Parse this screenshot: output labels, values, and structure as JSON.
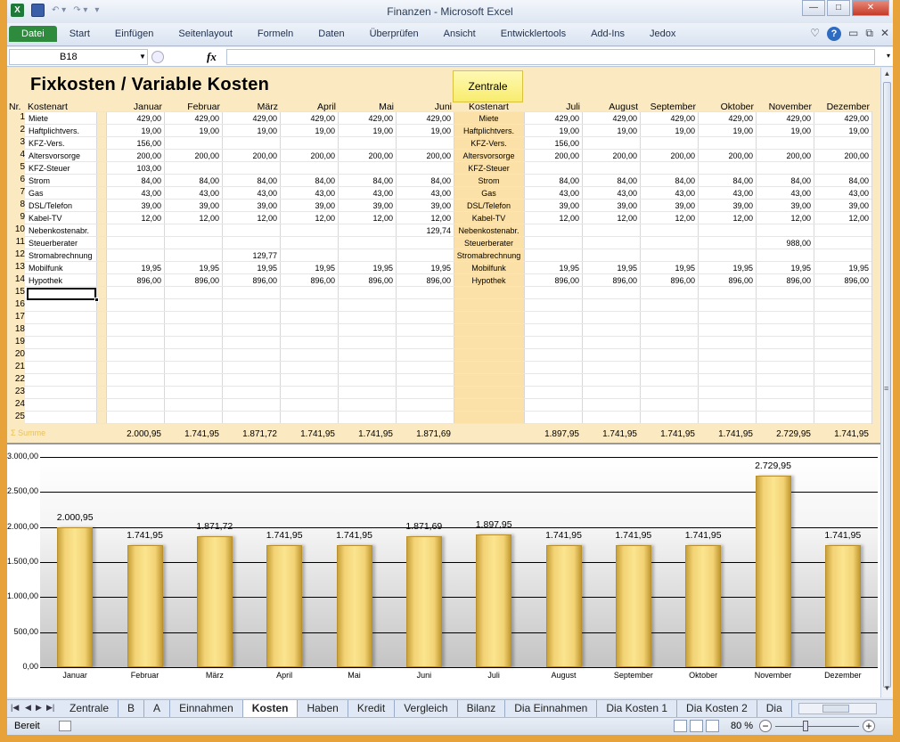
{
  "window": {
    "title": "Finanzen - Microsoft Excel"
  },
  "ribbon": {
    "tabs": [
      "Datei",
      "Start",
      "Einfügen",
      "Seitenlayout",
      "Formeln",
      "Daten",
      "Überprüfen",
      "Ansicht",
      "Entwicklertools",
      "Add-Ins",
      "Jedox"
    ],
    "active": "Datei"
  },
  "formula_bar": {
    "name_box": "B18",
    "fx": "fx",
    "value": ""
  },
  "sheet": {
    "title": "Fixkosten / Variable Kosten",
    "zentrale_button": "Zentrale",
    "headers": {
      "nr": "Nr.",
      "kostenart": "Kostenart",
      "kostenart_mid": "Kostenart",
      "months_left": [
        "Januar",
        "Februar",
        "März",
        "April",
        "Mai",
        "Juni"
      ],
      "months_right": [
        "Juli",
        "August",
        "September",
        "Oktober",
        "November",
        "Dezember"
      ]
    },
    "row_numbers": [
      "1",
      "2",
      "3",
      "4",
      "5",
      "6",
      "7",
      "8",
      "9",
      "10",
      "11",
      "12",
      "13",
      "14",
      "15",
      "16",
      "17",
      "18",
      "19",
      "20",
      "21",
      "22",
      "23",
      "24",
      "25"
    ],
    "rows": [
      {
        "name": "Miete",
        "mid": "Miete",
        "values": [
          "429,00",
          "429,00",
          "429,00",
          "429,00",
          "429,00",
          "429,00",
          "429,00",
          "429,00",
          "429,00",
          "429,00",
          "429,00",
          "429,00"
        ]
      },
      {
        "name": "Haftplichtvers.",
        "mid": "Haftplichtvers.",
        "values": [
          "19,00",
          "19,00",
          "19,00",
          "19,00",
          "19,00",
          "19,00",
          "19,00",
          "19,00",
          "19,00",
          "19,00",
          "19,00",
          "19,00"
        ]
      },
      {
        "name": "KFZ-Vers.",
        "mid": "KFZ-Vers.",
        "values": [
          "156,00",
          "",
          "",
          "",
          "",
          "",
          "156,00",
          "",
          "",
          "",
          "",
          ""
        ]
      },
      {
        "name": "Altersvorsorge",
        "mid": "Altersvorsorge",
        "values": [
          "200,00",
          "200,00",
          "200,00",
          "200,00",
          "200,00",
          "200,00",
          "200,00",
          "200,00",
          "200,00",
          "200,00",
          "200,00",
          "200,00"
        ]
      },
      {
        "name": "KFZ-Steuer",
        "mid": "KFZ-Steuer",
        "values": [
          "103,00",
          "",
          "",
          "",
          "",
          "",
          "",
          "",
          "",
          "",
          "",
          ""
        ]
      },
      {
        "name": "Strom",
        "mid": "Strom",
        "values": [
          "84,00",
          "84,00",
          "84,00",
          "84,00",
          "84,00",
          "84,00",
          "84,00",
          "84,00",
          "84,00",
          "84,00",
          "84,00",
          "84,00"
        ]
      },
      {
        "name": "Gas",
        "mid": "Gas",
        "values": [
          "43,00",
          "43,00",
          "43,00",
          "43,00",
          "43,00",
          "43,00",
          "43,00",
          "43,00",
          "43,00",
          "43,00",
          "43,00",
          "43,00"
        ]
      },
      {
        "name": "DSL/Telefon",
        "mid": "DSL/Telefon",
        "values": [
          "39,00",
          "39,00",
          "39,00",
          "39,00",
          "39,00",
          "39,00",
          "39,00",
          "39,00",
          "39,00",
          "39,00",
          "39,00",
          "39,00"
        ]
      },
      {
        "name": "Kabel-TV",
        "mid": "Kabel-TV",
        "values": [
          "12,00",
          "12,00",
          "12,00",
          "12,00",
          "12,00",
          "12,00",
          "12,00",
          "12,00",
          "12,00",
          "12,00",
          "12,00",
          "12,00"
        ]
      },
      {
        "name": "Nebenkostenabr.",
        "mid": "Nebenkostenabr.",
        "values": [
          "",
          "",
          "",
          "",
          "",
          "129,74",
          "",
          "",
          "",
          "",
          "",
          ""
        ]
      },
      {
        "name": "Steuerberater",
        "mid": "Steuerberater",
        "values": [
          "",
          "",
          "",
          "",
          "",
          "",
          "",
          "",
          "",
          "",
          "988,00",
          ""
        ]
      },
      {
        "name": "Stromabrechnung",
        "mid": "Stromabrechnung",
        "values": [
          "",
          "",
          "129,77",
          "",
          "",
          "",
          "",
          "",
          "",
          "",
          "",
          ""
        ]
      },
      {
        "name": "Mobilfunk",
        "mid": "Mobilfunk",
        "values": [
          "19,95",
          "19,95",
          "19,95",
          "19,95",
          "19,95",
          "19,95",
          "19,95",
          "19,95",
          "19,95",
          "19,95",
          "19,95",
          "19,95"
        ]
      },
      {
        "name": "Hypothek",
        "mid": "Hypothek",
        "values": [
          "896,00",
          "896,00",
          "896,00",
          "896,00",
          "896,00",
          "896,00",
          "896,00",
          "896,00",
          "896,00",
          "896,00",
          "896,00",
          "896,00"
        ]
      }
    ],
    "sum_label": "Σ Summe",
    "sums": [
      "2.000,95",
      "1.741,95",
      "1.871,72",
      "1.741,95",
      "1.741,95",
      "1.871,69",
      "1.897,95",
      "1.741,95",
      "1.741,95",
      "1.741,95",
      "2.729,95",
      "1.741,95"
    ]
  },
  "chart_data": {
    "type": "bar",
    "categories": [
      "Januar",
      "Februar",
      "März",
      "April",
      "Mai",
      "Juni",
      "Juli",
      "August",
      "September",
      "Oktober",
      "November",
      "Dezember"
    ],
    "values": [
      2000.95,
      1741.95,
      1871.72,
      1741.95,
      1741.95,
      1871.69,
      1897.95,
      1741.95,
      1741.95,
      1741.95,
      2729.95,
      1741.95
    ],
    "data_labels": [
      "2.000,95",
      "1.741,95",
      "1.871,72",
      "1.741,95",
      "1.741,95",
      "1.871,69",
      "1.897,95",
      "1.741,95",
      "1.741,95",
      "1.741,95",
      "2.729,95",
      "1.741,95"
    ],
    "yticks": [
      "0,00",
      "500,00",
      "1.000,00",
      "1.500,00",
      "2.000,00",
      "2.500,00",
      "3.000,00"
    ],
    "ylim": [
      0,
      3000
    ],
    "grid": true,
    "bar_color": "#f2d274",
    "title": "",
    "xlabel": "",
    "ylabel": ""
  },
  "sheet_tabs": {
    "tabs": [
      "Zentrale",
      "B",
      "A",
      "Einnahmen",
      "Kosten",
      "Haben",
      "Kredit",
      "Vergleich",
      "Bilanz",
      "Dia Einnahmen",
      "Dia Kosten 1",
      "Dia Kosten 2",
      "Dia"
    ],
    "active": "Kosten"
  },
  "status": {
    "text": "Bereit",
    "zoom": "80 %"
  },
  "colors": {
    "sheet_bg": "#fbe9c1",
    "mid_col": "#fbe0a8",
    "datei_tab": "#2e8b3e",
    "zentrale_btn": "#f8ec6e"
  }
}
